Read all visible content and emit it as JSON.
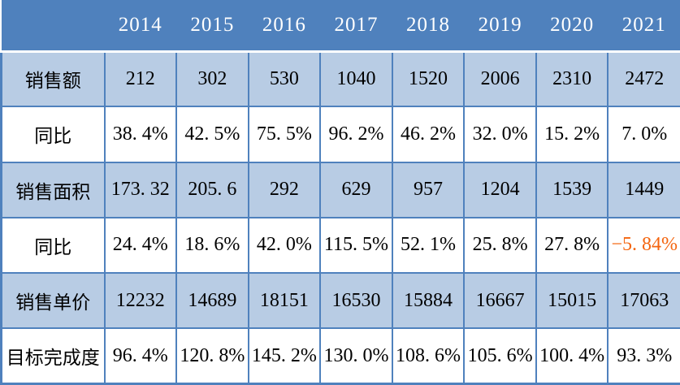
{
  "table": {
    "header": {
      "corner": "",
      "years": [
        "2014",
        "2015",
        "2016",
        "2017",
        "2018",
        "2019",
        "2020",
        "2021"
      ]
    },
    "rows": [
      {
        "label": "销售额",
        "values": [
          "212",
          "302",
          "530",
          "1040",
          "1520",
          "2006",
          "2310",
          "2472"
        ]
      },
      {
        "label": "同比",
        "values": [
          "38. 4%",
          "42. 5%",
          "75. 5%",
          "96. 2%",
          "46. 2%",
          "32. 0%",
          "15. 2%",
          "7. 0%"
        ]
      },
      {
        "label": "销售面积",
        "values": [
          "173. 32",
          "205. 6",
          "292",
          "629",
          "957",
          "1204",
          "1539",
          "1449"
        ]
      },
      {
        "label": "同比",
        "values": [
          "24. 4%",
          "18. 6%",
          "42. 0%",
          "115. 5%",
          "52. 1%",
          "25. 8%",
          "27. 8%",
          "−5. 84%"
        ]
      },
      {
        "label": "销售单价",
        "values": [
          "12232",
          "14689",
          "18151",
          "16530",
          "15884",
          "16667",
          "15015",
          "17063"
        ]
      },
      {
        "label": "目标完成度",
        "values": [
          "96. 4%",
          "120. 8%",
          "145. 2%",
          "130. 0%",
          "108. 6%",
          "105. 6%",
          "100. 4%",
          "93. 3%"
        ]
      }
    ]
  },
  "colors": {
    "header_bg": "#4f81bd",
    "header_text": "#ffffff",
    "row_shaded_bg": "#b8cce4",
    "row_plain_bg": "#ffffff",
    "border": "#4f81bd",
    "cell_text": "#000000",
    "negative_text": "#f4650f"
  },
  "chart_data": {
    "type": "table",
    "categories": [
      "2014",
      "2015",
      "2016",
      "2017",
      "2018",
      "2019",
      "2020",
      "2021"
    ],
    "series": [
      {
        "name": "销售额",
        "values": [
          212,
          302,
          530,
          1040,
          1520,
          2006,
          2310,
          2472
        ]
      },
      {
        "name": "同比 (销售额)",
        "unit": "%",
        "values": [
          38.4,
          42.5,
          75.5,
          96.2,
          46.2,
          32.0,
          15.2,
          7.0
        ]
      },
      {
        "name": "销售面积",
        "values": [
          173.32,
          205.6,
          292,
          629,
          957,
          1204,
          1539,
          1449
        ]
      },
      {
        "name": "同比 (销售面积)",
        "unit": "%",
        "values": [
          24.4,
          18.6,
          42.0,
          115.5,
          52.1,
          25.8,
          27.8,
          -5.84
        ]
      },
      {
        "name": "销售单价",
        "values": [
          12232,
          14689,
          18151,
          16530,
          15884,
          16667,
          15015,
          17063
        ]
      },
      {
        "name": "目标完成度",
        "unit": "%",
        "values": [
          96.4,
          120.8,
          145.2,
          130.0,
          108.6,
          105.6,
          100.4,
          93.3
        ]
      }
    ],
    "title": "",
    "legend": "off",
    "grid": "on",
    "notes": "Negative value −5.84% (2021, 销售面积同比) rendered in orange; header row solid blue; data rows alternate light blue and white."
  }
}
